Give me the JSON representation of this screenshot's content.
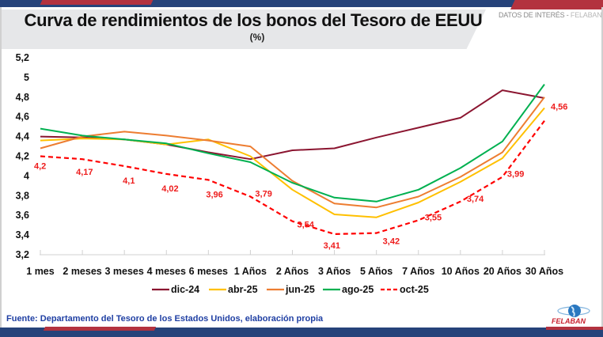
{
  "header": {
    "title": "Curva de rendimientos de los bonos del Tesoro de EEUU",
    "subtitle": "(%)",
    "tag_prefix": "DATOS DE INTERÉS - ",
    "tag_brand": "FELABAN"
  },
  "footer": {
    "source": "Fuente: Departamento del Tesoro de los Estados Unidos, elaboración propia",
    "logo_text": "FELABAN"
  },
  "colors": {
    "brand_blue": "#26437a",
    "brand_red": "#b3323f",
    "source_text": "#1f3fa3"
  },
  "chart_data": {
    "type": "line",
    "title": "Curva de rendimientos de los bonos del Tesoro de EEUU",
    "subtitle": "(%)",
    "xlabel": "",
    "ylabel": "",
    "categories": [
      "1 mes",
      "2 meses",
      "3 meses",
      "4 meses",
      "6 meses",
      "1 Años",
      "2 Años",
      "3 Años",
      "5 Años",
      "7 Años",
      "10 Años",
      "20 Años",
      "30 Años"
    ],
    "ylim": [
      3.2,
      5.2
    ],
    "yticks": [
      "3,2",
      "3,4",
      "3,6",
      "3,8",
      "4",
      "4,2",
      "4,4",
      "4,6",
      "4,8",
      "5",
      "5,2"
    ],
    "ytick_values": [
      3.2,
      3.4,
      3.6,
      3.8,
      4.0,
      4.2,
      4.4,
      4.6,
      4.8,
      5.0,
      5.2
    ],
    "grid": false,
    "legend": "bottom",
    "series": [
      {
        "name": "dic-24",
        "color": "#8b1530",
        "dashed": false,
        "values": [
          4.4,
          4.39,
          4.37,
          4.32,
          4.24,
          4.17,
          4.26,
          4.28,
          4.39,
          4.49,
          4.59,
          4.87,
          4.79
        ]
      },
      {
        "name": "abr-25",
        "color": "#ffc000",
        "dashed": false,
        "values": [
          4.36,
          4.38,
          4.37,
          4.32,
          4.37,
          4.2,
          3.86,
          3.61,
          3.58,
          3.73,
          3.94,
          4.18,
          4.69
        ]
      },
      {
        "name": "jun-25",
        "color": "#ed7d31",
        "dashed": false,
        "values": [
          4.28,
          4.4,
          4.45,
          4.41,
          4.36,
          4.3,
          3.95,
          3.72,
          3.68,
          3.79,
          3.99,
          4.24,
          4.8
        ]
      },
      {
        "name": "ago-25",
        "color": "#00b050",
        "dashed": false,
        "values": [
          4.48,
          4.41,
          4.37,
          4.33,
          4.23,
          4.14,
          3.93,
          3.78,
          3.74,
          3.86,
          4.08,
          4.35,
          4.93
        ]
      },
      {
        "name": "oct-25",
        "color": "#ff0000",
        "dashed": true,
        "values": [
          4.2,
          4.17,
          4.1,
          4.02,
          3.96,
          3.79,
          3.54,
          3.41,
          3.42,
          3.55,
          3.74,
          3.99,
          4.56
        ],
        "data_labels": [
          "4,2",
          "4,17",
          "4,1",
          "4,02",
          "3,96",
          "3,79",
          "3,54",
          "3,41",
          "3,42",
          "3,55",
          "3,74",
          "3,99",
          "4,56"
        ]
      }
    ]
  }
}
